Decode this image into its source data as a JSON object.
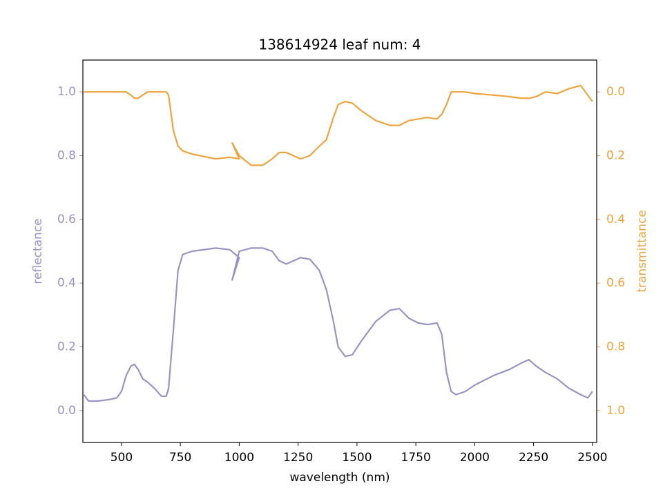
{
  "chart_data": {
    "type": "line",
    "title": "138614924 leaf num: 4",
    "xlabel": "wavelength (nm)",
    "ylabel": "reflectance",
    "y2label": "transmittance",
    "x": [
      340,
      360,
      400,
      450,
      480,
      500,
      520,
      540,
      555,
      570,
      590,
      610,
      640,
      670,
      690,
      700,
      720,
      740,
      760,
      800,
      900,
      960,
      1000,
      970,
      1000,
      1050,
      1100,
      1140,
      1170,
      1200,
      1230,
      1260,
      1300,
      1340,
      1370,
      1400,
      1420,
      1450,
      1480,
      1520,
      1580,
      1640,
      1680,
      1720,
      1760,
      1800,
      1840,
      1860,
      1880,
      1900,
      1920,
      1960,
      2000,
      2080,
      2150,
      2200,
      2230,
      2260,
      2300,
      2350,
      2400,
      2450,
      2480,
      2500
    ],
    "series": [
      {
        "name": "reflectance",
        "color": "#9893c5",
        "axis": "y",
        "values": [
          0.05,
          0.03,
          0.03,
          0.035,
          0.04,
          0.06,
          0.11,
          0.14,
          0.145,
          0.13,
          0.1,
          0.09,
          0.07,
          0.045,
          0.045,
          0.07,
          0.25,
          0.44,
          0.49,
          0.5,
          0.51,
          0.505,
          0.48,
          0.41,
          0.5,
          0.51,
          0.51,
          0.5,
          0.47,
          0.46,
          0.47,
          0.48,
          0.475,
          0.44,
          0.38,
          0.28,
          0.2,
          0.17,
          0.175,
          0.22,
          0.28,
          0.315,
          0.32,
          0.29,
          0.275,
          0.27,
          0.275,
          0.24,
          0.12,
          0.06,
          0.05,
          0.06,
          0.08,
          0.11,
          0.13,
          0.15,
          0.16,
          0.14,
          0.12,
          0.1,
          0.07,
          0.05,
          0.04,
          0.06
        ]
      },
      {
        "name": "transmittance",
        "color": "#f0a33c",
        "axis": "y2",
        "values": [
          0,
          0,
          0,
          0,
          0,
          0,
          0,
          0.01,
          0.02,
          0.02,
          0.01,
          0,
          0,
          0,
          0,
          0.01,
          0.12,
          0.17,
          0.185,
          0.195,
          0.21,
          0.205,
          0.21,
          0.16,
          0.2,
          0.23,
          0.23,
          0.21,
          0.19,
          0.19,
          0.2,
          0.21,
          0.2,
          0.17,
          0.15,
          0.08,
          0.04,
          0.03,
          0.035,
          0.06,
          0.09,
          0.105,
          0.105,
          0.09,
          0.085,
          0.08,
          0.085,
          0.07,
          0.04,
          0,
          0,
          0,
          0.005,
          0.01,
          0.015,
          0.02,
          0.02,
          0.015,
          0,
          0.005,
          -0.01,
          -0.02,
          0.01,
          0.03
        ]
      }
    ],
    "xlim": [
      336,
      2518
    ],
    "xticks": [
      500,
      750,
      1000,
      1250,
      1500,
      1750,
      2000,
      2250,
      2500
    ],
    "ylim": [
      -0.1,
      1.1
    ],
    "yticks": [
      {
        "value": 0,
        "label": "0.0"
      },
      0.2,
      0.4,
      0.6,
      0.8,
      {
        "value": 1,
        "label": "1.0"
      }
    ],
    "y2lim": [
      1.1,
      -0.1
    ],
    "y2ticks": [
      {
        "value": 0,
        "label": "0.0"
      },
      0.2,
      0.4,
      0.6,
      0.8,
      {
        "value": 1,
        "label": "1.0"
      }
    ]
  }
}
